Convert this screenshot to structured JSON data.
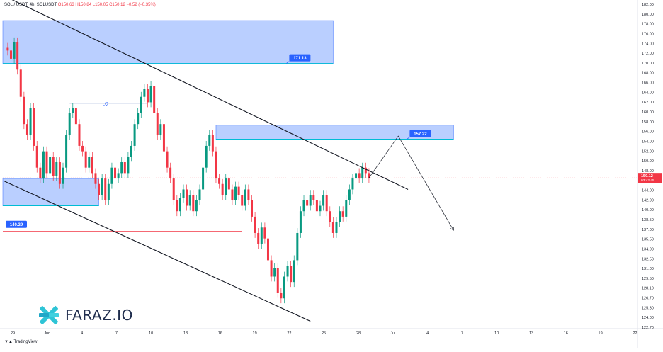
{
  "header": {
    "symbol": "SOL / USDT, 4h, SOLUSDT",
    "ohlc": "O150.63 H150.84 L150.05 C150.12 −0.52 (−0.35%)"
  },
  "branding": {
    "faraz_logo_text": "FARAZ.IO",
    "tv_text": "TradingView"
  },
  "chart_data": {
    "type": "candlestick",
    "symbol": "SOLUSDT",
    "timeframe": "4h",
    "yaxis": {
      "range": [
        122.7,
        182.0
      ],
      "ticks": [
        "182.00",
        "180.00",
        "178.00",
        "176.00",
        "174.00",
        "172.00",
        "170.00",
        "168.00",
        "166.00",
        "164.00",
        "162.00",
        "160.00",
        "158.00",
        "156.00",
        "154.00",
        "152.00",
        "150.00",
        "148.00",
        "146.00",
        "144.00",
        "142.00",
        "140.00",
        "138.50",
        "137.00",
        "135.50",
        "134.00",
        "132.50",
        "131.00",
        "129.50",
        "128.10",
        "126.70",
        "125.30",
        "124.00",
        "122.70"
      ]
    },
    "xaxis": {
      "ticks": [
        "29",
        "Jun",
        "4",
        "7",
        "10",
        "13",
        "16",
        "19",
        "22",
        "25",
        "28",
        "Jul",
        "4",
        "7",
        "10",
        "13",
        "16",
        "19",
        "22"
      ]
    },
    "current_price_label": "150.12",
    "countdown_label": "03:42:45",
    "zones": [
      {
        "name": "upper-supply-zone",
        "low": 171.13,
        "high": 179.0,
        "label": "171.13"
      },
      {
        "name": "mid-resistance-zone",
        "low": 157.22,
        "high": 159.8,
        "label": "157.22"
      },
      {
        "name": "lower-demand-zone",
        "low": 145.0,
        "high": 150.0
      }
    ],
    "levels": [
      {
        "name": "support-line",
        "value": 140.29,
        "label": "140.29",
        "color": "#f23645"
      },
      {
        "name": "liquidity-line",
        "value": 163.8,
        "label": "LQ",
        "color": "#2962ff"
      }
    ],
    "candles_close_path": [
      [
        0,
        174.0
      ],
      [
        1,
        173.5
      ],
      [
        2,
        172.0
      ],
      [
        3,
        175.0
      ],
      [
        4,
        170.0
      ],
      [
        5,
        165.0
      ],
      [
        6,
        160.0
      ],
      [
        7,
        158.0
      ],
      [
        8,
        163.0
      ],
      [
        9,
        156.0
      ],
      [
        10,
        152.0
      ],
      [
        11,
        150.0
      ],
      [
        12,
        155.0
      ],
      [
        13,
        151.0
      ],
      [
        14,
        154.0
      ],
      [
        15,
        150.5
      ],
      [
        16,
        153.0
      ],
      [
        17,
        149.0
      ],
      [
        18,
        152.0
      ],
      [
        19,
        158.0
      ],
      [
        20,
        162.0
      ],
      [
        21,
        163.0
      ],
      [
        22,
        160.0
      ],
      [
        23,
        156.0
      ],
      [
        24,
        155.0
      ],
      [
        25,
        152.0
      ],
      [
        26,
        154.0
      ],
      [
        27,
        151.0
      ],
      [
        28,
        149.0
      ],
      [
        29,
        147.0
      ],
      [
        30,
        150.0
      ],
      [
        31,
        146.0
      ],
      [
        32,
        149.0
      ],
      [
        33,
        152.0
      ],
      [
        34,
        150.0
      ],
      [
        35,
        151.0
      ],
      [
        36,
        153.0
      ],
      [
        37,
        151.0
      ],
      [
        38,
        154.0
      ],
      [
        39,
        156.0
      ],
      [
        40,
        160.0
      ],
      [
        41,
        162.0
      ],
      [
        42,
        165.0
      ],
      [
        43,
        166.5
      ],
      [
        44,
        164.0
      ],
      [
        45,
        167.0
      ],
      [
        46,
        162.0
      ],
      [
        47,
        158.0
      ],
      [
        48,
        160.0
      ],
      [
        49,
        155.0
      ],
      [
        50,
        152.0
      ],
      [
        51,
        150.0
      ],
      [
        52,
        146.0
      ],
      [
        53,
        144.0
      ],
      [
        54,
        146.5
      ],
      [
        55,
        148.0
      ],
      [
        56,
        145.0
      ],
      [
        57,
        147.0
      ],
      [
        58,
        144.0
      ],
      [
        59,
        146.0
      ],
      [
        60,
        148.0
      ],
      [
        61,
        152.0
      ],
      [
        62,
        156.0
      ],
      [
        63,
        158.0
      ],
      [
        64,
        155.0
      ],
      [
        65,
        150.0
      ],
      [
        66,
        149.0
      ],
      [
        67,
        147.0
      ],
      [
        68,
        150.0
      ],
      [
        69,
        148.0
      ],
      [
        70,
        146.0
      ],
      [
        71,
        148.5
      ],
      [
        72,
        147.0
      ],
      [
        73,
        145.0
      ],
      [
        74,
        148.0
      ],
      [
        75,
        146.0
      ],
      [
        76,
        143.0
      ],
      [
        77,
        140.0
      ],
      [
        78,
        138.0
      ],
      [
        79,
        141.0
      ],
      [
        80,
        139.0
      ],
      [
        81,
        135.0
      ],
      [
        82,
        132.0
      ],
      [
        83,
        133.5
      ],
      [
        84,
        129.0
      ],
      [
        85,
        128.0
      ],
      [
        86,
        132.0
      ],
      [
        87,
        134.0
      ],
      [
        88,
        131.0
      ],
      [
        89,
        135.0
      ],
      [
        90,
        140.0
      ],
      [
        91,
        144.0
      ],
      [
        92,
        146.0
      ],
      [
        93,
        145.0
      ],
      [
        94,
        147.0
      ],
      [
        95,
        146.0
      ],
      [
        96,
        144.0
      ],
      [
        97,
        145.0
      ],
      [
        98,
        147.0
      ],
      [
        99,
        144.0
      ],
      [
        100,
        142.0
      ],
      [
        101,
        140.0
      ],
      [
        102,
        142.0
      ],
      [
        103,
        144.0
      ],
      [
        104,
        143.0
      ],
      [
        105,
        146.0
      ],
      [
        106,
        148.0
      ],
      [
        107,
        150.0
      ],
      [
        108,
        151.0
      ],
      [
        109,
        150.0
      ],
      [
        110,
        152.0
      ],
      [
        111,
        151.0
      ],
      [
        112,
        150.12
      ]
    ],
    "forecast_path": [
      [
        112,
        150.12
      ],
      [
        121,
        157.8
      ],
      [
        138,
        140.5
      ]
    ],
    "channel_upper": [
      [
        0,
        183.5
      ],
      [
        124,
        148.0
      ]
    ],
    "channel_lower": [
      [
        0,
        149.5
      ],
      [
        94,
        123.8
      ]
    ]
  }
}
